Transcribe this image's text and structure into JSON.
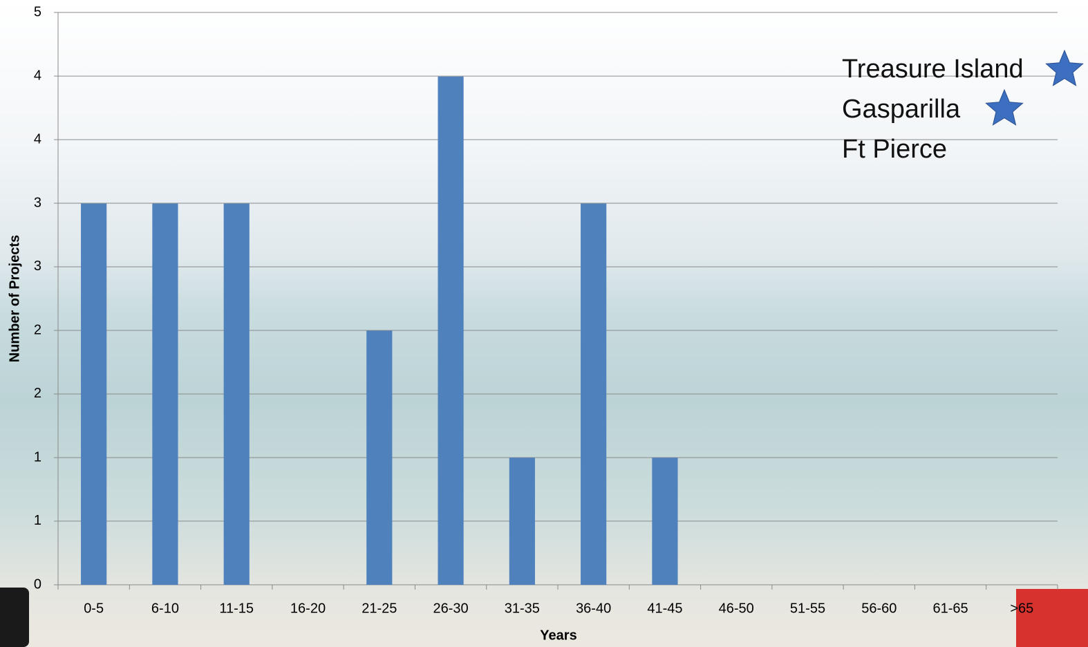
{
  "chart_data": {
    "type": "bar",
    "x_label": "Years",
    "y_label": "Number of Projects",
    "categories": [
      "0-5",
      "6-10",
      "11-15",
      "16-20",
      "21-25",
      "26-30",
      "31-35",
      "36-40",
      "41-45",
      "46-50",
      "51-55",
      "56-60",
      "61-65",
      ">65"
    ],
    "values": [
      3.33,
      3.33,
      3.33,
      0,
      2.22,
      4.44,
      1.11,
      3.33,
      1.11,
      0,
      0,
      0,
      0,
      0
    ],
    "color": "#4f81bd",
    "ylim": [
      0,
      5
    ],
    "yticks": [
      0,
      {
        "value": 0.556,
        "label": "1"
      },
      {
        "value": 1.111,
        "label": "1"
      },
      {
        "value": 1.667,
        "label": "2"
      },
      {
        "value": 2.222,
        "label": "2"
      },
      {
        "value": 2.778,
        "label": "3"
      },
      {
        "value": 3.333,
        "label": "3"
      },
      {
        "value": 3.889,
        "label": "4"
      },
      {
        "value": 4.444,
        "label": "4"
      },
      5
    ],
    "grid": true,
    "annotations": [
      "Treasure Island",
      "Gasparilla",
      "Ft Pierce"
    ]
  }
}
